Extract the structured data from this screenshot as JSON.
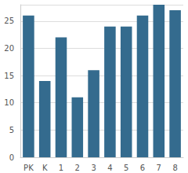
{
  "chart_data": {
    "type": "bar",
    "categories": [
      "PK",
      "K",
      "1",
      "2",
      "3",
      "4",
      "5",
      "6",
      "7",
      "8"
    ],
    "values": [
      26,
      14,
      22,
      11,
      16,
      24,
      24,
      26,
      28,
      27
    ],
    "color": "#346b8e",
    "ylim": [
      0,
      28
    ],
    "yticks": [
      0,
      5,
      10,
      15,
      20,
      25
    ],
    "grid": true
  }
}
